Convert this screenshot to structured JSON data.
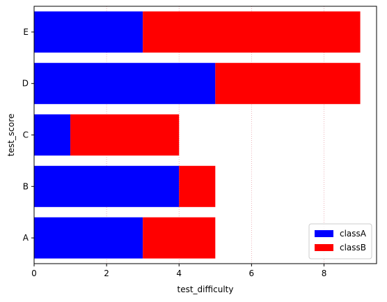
{
  "chart_data": {
    "type": "bar",
    "orientation": "horizontal",
    "stacked": true,
    "categories": [
      "A",
      "B",
      "C",
      "D",
      "E"
    ],
    "series": [
      {
        "name": "classA",
        "values": [
          3,
          4,
          1,
          5,
          3
        ],
        "color": "#0000ff"
      },
      {
        "name": "classB",
        "values": [
          2,
          1,
          3,
          4,
          6
        ],
        "color": "#ff0000"
      }
    ],
    "title": "",
    "xlabel": "test_difficulty",
    "ylabel": "test_score",
    "xlim": [
      0,
      9.45
    ],
    "xticks": [
      0,
      2,
      4,
      6,
      8
    ],
    "grid": {
      "x": true,
      "y": false,
      "style": "dotted",
      "color": "#e6a0a8"
    },
    "legend": {
      "position": "lower-right"
    }
  }
}
